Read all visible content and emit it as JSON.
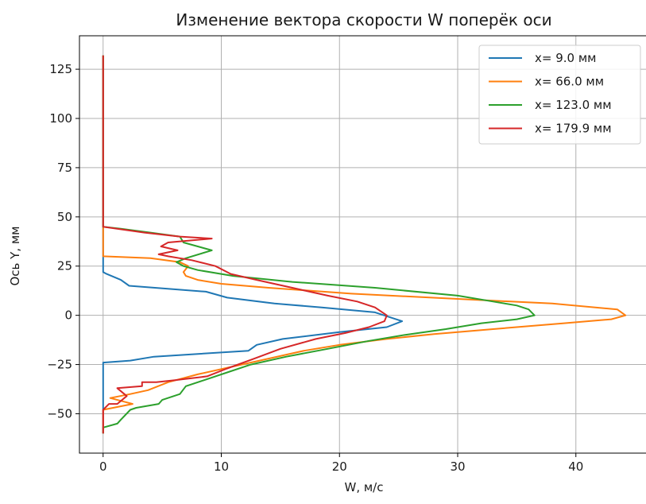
{
  "chart_data": {
    "type": "line",
    "title": "Изменение вектора скорости W поперёк оси",
    "xlabel": "W, м/с",
    "ylabel": "Ось Y, мм",
    "xlim": [
      -2,
      46
    ],
    "ylim": [
      -70,
      142
    ],
    "xticks": [
      0,
      10,
      20,
      30,
      40
    ],
    "yticks": [
      -50,
      -25,
      0,
      25,
      50,
      75,
      100,
      125
    ],
    "grid": true,
    "legend_position": "top-right",
    "series": [
      {
        "name": "x= 9.0 мм",
        "color": "#1f77b4",
        "points": [
          [
            0,
            132
          ],
          [
            0,
            22
          ],
          [
            0.3,
            21
          ],
          [
            1.5,
            18
          ],
          [
            2.2,
            15
          ],
          [
            8.7,
            12
          ],
          [
            10.5,
            9
          ],
          [
            14.5,
            6
          ],
          [
            18.5,
            4
          ],
          [
            23,
            1.5
          ],
          [
            25.3,
            -3
          ],
          [
            24,
            -6
          ],
          [
            20,
            -8.5
          ],
          [
            15.2,
            -12
          ],
          [
            13,
            -15
          ],
          [
            12.3,
            -18
          ],
          [
            4.3,
            -21
          ],
          [
            2.3,
            -23
          ],
          [
            0,
            -24
          ],
          [
            0,
            -60
          ]
        ]
      },
      {
        "name": "x= 66.0 мм",
        "color": "#ff7f0e",
        "points": [
          [
            0,
            132
          ],
          [
            0,
            30
          ],
          [
            4,
            29
          ],
          [
            6.5,
            27
          ],
          [
            7.2,
            25
          ],
          [
            6.8,
            22
          ],
          [
            7,
            20
          ],
          [
            8,
            18
          ],
          [
            10,
            16
          ],
          [
            14,
            14
          ],
          [
            21,
            11
          ],
          [
            31,
            8
          ],
          [
            38,
            6
          ],
          [
            43.5,
            3
          ],
          [
            44.2,
            0
          ],
          [
            43,
            -2
          ],
          [
            39,
            -4
          ],
          [
            33,
            -7
          ],
          [
            28,
            -9.5
          ],
          [
            24,
            -12
          ],
          [
            20,
            -15
          ],
          [
            17,
            -18
          ],
          [
            14,
            -22
          ],
          [
            11,
            -26
          ],
          [
            8,
            -30
          ],
          [
            5.5,
            -34
          ],
          [
            3.8,
            -38
          ],
          [
            2.3,
            -40
          ],
          [
            0.6,
            -42
          ],
          [
            2.5,
            -45
          ],
          [
            0,
            -48
          ],
          [
            0,
            -60
          ]
        ]
      },
      {
        "name": "x= 123.0 мм",
        "color": "#2ca02c",
        "points": [
          [
            0,
            132
          ],
          [
            0,
            45
          ],
          [
            1.5,
            44
          ],
          [
            4,
            42
          ],
          [
            6.5,
            40
          ],
          [
            6.8,
            37
          ],
          [
            9.2,
            33
          ],
          [
            7,
            29
          ],
          [
            6.2,
            27
          ],
          [
            6.8,
            25
          ],
          [
            8,
            23
          ],
          [
            11,
            20
          ],
          [
            16,
            17
          ],
          [
            23,
            14
          ],
          [
            30,
            10
          ],
          [
            33,
            7
          ],
          [
            35,
            5
          ],
          [
            36,
            3
          ],
          [
            36.5,
            0
          ],
          [
            35,
            -2
          ],
          [
            32,
            -4
          ],
          [
            29,
            -7
          ],
          [
            25.5,
            -10
          ],
          [
            22.5,
            -13
          ],
          [
            19,
            -17
          ],
          [
            15.5,
            -21
          ],
          [
            12.5,
            -25
          ],
          [
            10.5,
            -29
          ],
          [
            8.5,
            -33
          ],
          [
            7,
            -36
          ],
          [
            6.5,
            -40
          ],
          [
            5,
            -43
          ],
          [
            4.7,
            -45
          ],
          [
            2.8,
            -47
          ],
          [
            2.3,
            -48
          ],
          [
            1.5,
            -53
          ],
          [
            1.2,
            -55
          ],
          [
            0,
            -57
          ],
          [
            0,
            -60
          ]
        ]
      },
      {
        "name": "x= 179.9 мм",
        "color": "#d62728",
        "points": [
          [
            0,
            132
          ],
          [
            0,
            45
          ],
          [
            3.5,
            42
          ],
          [
            6.5,
            40
          ],
          [
            9.2,
            39
          ],
          [
            5.5,
            37
          ],
          [
            4.9,
            35
          ],
          [
            6.3,
            33
          ],
          [
            4.7,
            31
          ],
          [
            5.5,
            30
          ],
          [
            7.5,
            28
          ],
          [
            9.5,
            25
          ],
          [
            10.8,
            21
          ],
          [
            13,
            18
          ],
          [
            16,
            14
          ],
          [
            19,
            10
          ],
          [
            21.5,
            7
          ],
          [
            23,
            4
          ],
          [
            24,
            0
          ],
          [
            23.8,
            -3
          ],
          [
            22.5,
            -6
          ],
          [
            20.5,
            -9
          ],
          [
            18,
            -12
          ],
          [
            15,
            -17
          ],
          [
            12.8,
            -22
          ],
          [
            10.5,
            -27
          ],
          [
            8.8,
            -31
          ],
          [
            6,
            -33
          ],
          [
            4.5,
            -34
          ],
          [
            3.3,
            -34
          ],
          [
            3.3,
            -36
          ],
          [
            1.2,
            -37
          ],
          [
            2,
            -41
          ],
          [
            1.2,
            -45
          ],
          [
            0.5,
            -45
          ],
          [
            0,
            -48
          ],
          [
            0,
            -60
          ]
        ]
      }
    ]
  }
}
